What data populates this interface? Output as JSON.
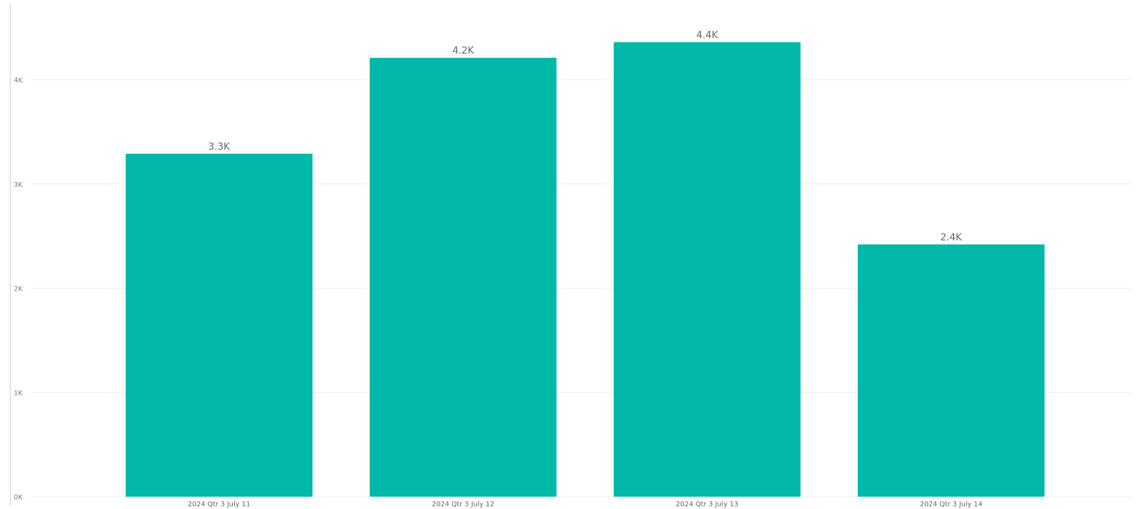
{
  "chart_data": {
    "type": "bar",
    "categories": [
      "2024 Qtr 3 July 11",
      "2024 Qtr 3 July 12",
      "2024 Qtr 3 July 13",
      "2024 Qtr 3 July 14"
    ],
    "values": [
      3290,
      4210,
      4360,
      2420
    ],
    "data_labels": [
      "3.3K",
      "4.2K",
      "4.4K",
      "2.4K"
    ],
    "y_ticks": [
      {
        "value": 0,
        "label": "0K"
      },
      {
        "value": 1000,
        "label": "1K"
      },
      {
        "value": 2000,
        "label": "2K"
      },
      {
        "value": 3000,
        "label": "3K"
      },
      {
        "value": 4000,
        "label": "4K"
      }
    ],
    "ylim": [
      0,
      4600
    ],
    "title": "",
    "xlabel": "",
    "ylabel": "",
    "grid": true,
    "legend": "none",
    "colors": {
      "bar": "#01B8AA",
      "grid": "#ececec",
      "axis": "#c8c8c8"
    }
  }
}
